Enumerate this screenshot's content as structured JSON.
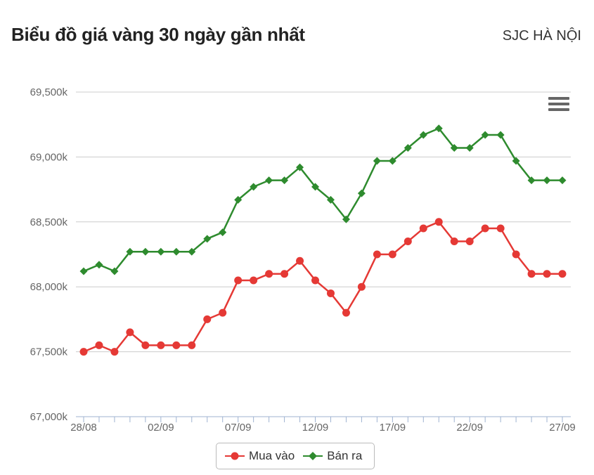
{
  "header": {
    "title": "Biểu đồ giá vàng 30 ngày gần nhất",
    "source": "SJC HÀ NỘI"
  },
  "menu": {
    "icon": "hamburger-menu-icon"
  },
  "colors": {
    "buy": "#e53935",
    "sell": "#2e8b2e",
    "grid": "#cccccc",
    "axis": "#9fb3d1"
  },
  "chart_data": {
    "type": "line",
    "x_ticks": [
      "28/08",
      "02/09",
      "07/09",
      "12/09",
      "17/09",
      "22/09",
      "27/09"
    ],
    "x_tick_indices": [
      0,
      5,
      10,
      15,
      20,
      25,
      31
    ],
    "y_ticks": [
      "67,000k",
      "67,500k",
      "68,000k",
      "68,500k",
      "69,000k",
      "69,500k"
    ],
    "ylim": [
      67000,
      69500
    ],
    "grid": true,
    "legend_position": "bottom-center",
    "series": [
      {
        "name": "Mua vào",
        "marker": "circle",
        "values": [
          67500,
          67550,
          67500,
          67650,
          67550,
          67550,
          67550,
          67550,
          67750,
          67800,
          68050,
          68050,
          68100,
          68100,
          68200,
          68050,
          67950,
          67800,
          68000,
          68250,
          68250,
          68350,
          68450,
          68500,
          68350,
          68350,
          68450,
          68450,
          68250,
          68100,
          68100,
          68100
        ]
      },
      {
        "name": "Bán ra",
        "marker": "diamond",
        "values": [
          68120,
          68170,
          68120,
          68270,
          68270,
          68270,
          68270,
          68270,
          68370,
          68420,
          68670,
          68770,
          68820,
          68820,
          68920,
          68770,
          68670,
          68520,
          68720,
          68970,
          68970,
          69070,
          69170,
          69220,
          69070,
          69070,
          69170,
          69170,
          68970,
          68820,
          68820,
          68820
        ]
      }
    ]
  }
}
